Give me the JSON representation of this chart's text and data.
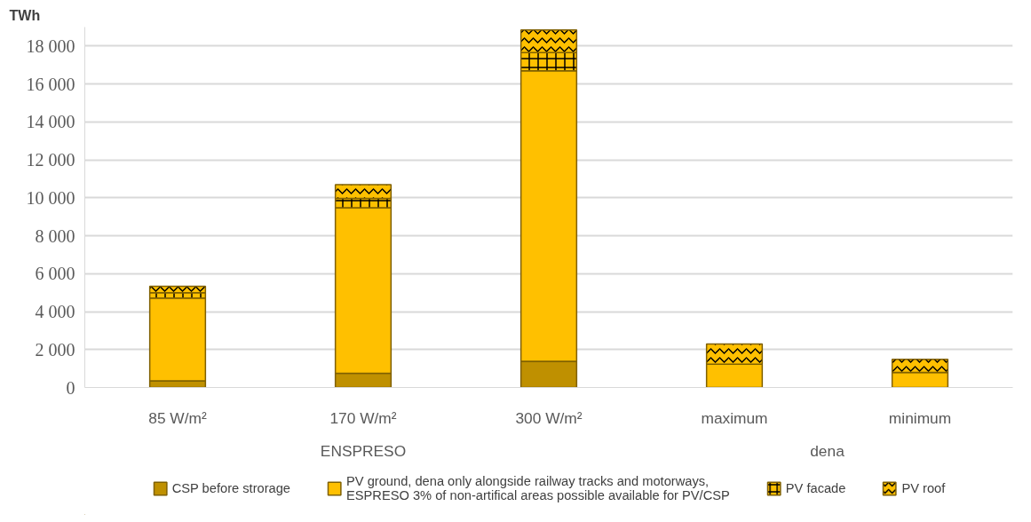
{
  "chart_data": {
    "type": "bar",
    "stacked": true,
    "ylabel": "TWh",
    "categories": [
      "85 W/m²",
      "170 W/m²",
      "300 W/m²",
      "maximum",
      "minimum"
    ],
    "series": [
      {
        "name": "CSP before strorage",
        "color": "#bf9000",
        "values": [
          350,
          750,
          1380,
          0,
          0
        ]
      },
      {
        "name": "PV ground, dena only alongside railway tracks and motorways, ESPRESO 3% of non-artifical areas possible available for PV/CSP",
        "color": "#ffc000",
        "values": [
          4370,
          8730,
          15310,
          1230,
          800
        ]
      },
      {
        "name": "PV facade",
        "color": "#ffc000",
        "values": [
          270,
          490,
          960,
          0,
          0
        ]
      },
      {
        "name": "PV roof",
        "color": "#ffc000",
        "values": [
          350,
          720,
          1200,
          1060,
          690
        ]
      }
    ],
    "ylim": [
      0,
      19000
    ],
    "yticks": [
      0,
      {
        "value": 2000,
        "label": "2 000"
      },
      {
        "value": 4000,
        "label": "4 000"
      },
      {
        "value": 6000,
        "label": "6 000"
      },
      {
        "value": 8000,
        "label": "8 000"
      },
      {
        "value": 10000,
        "label": "10 000"
      },
      {
        "value": 12000,
        "label": "12 000"
      },
      {
        "value": 14000,
        "label": "14 000"
      },
      {
        "value": 16000,
        "label": "16 000"
      },
      {
        "value": 18000,
        "label": "18 000"
      }
    ],
    "annotations": [
      "ENSPRESO",
      "dena"
    ],
    "grid": "y",
    "legend": "bottom"
  }
}
